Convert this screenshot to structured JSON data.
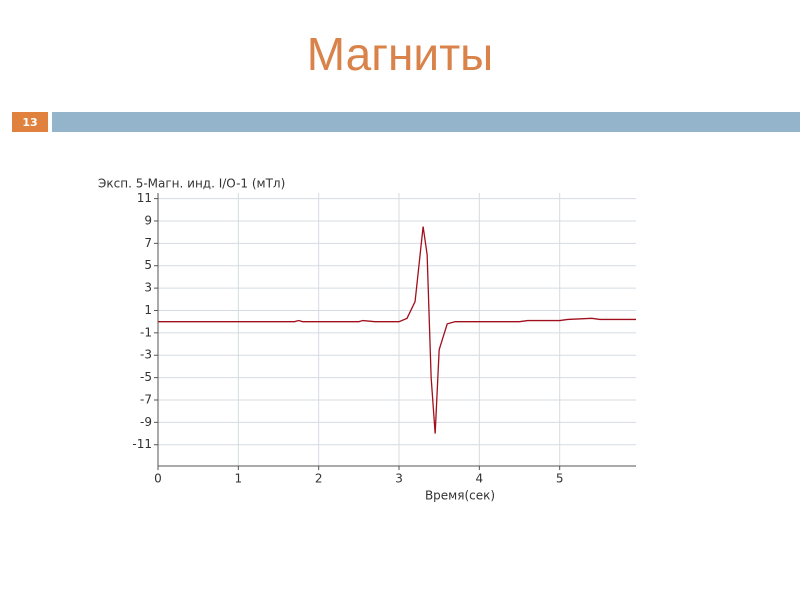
{
  "slide": {
    "title": "Магниты",
    "number": "13"
  },
  "chart_data": {
    "type": "line",
    "y_label": "Эксп. 5-Магн. инд. I/O-1 (мТл)",
    "x_label": "Время(сек)",
    "x": [
      0,
      1.7,
      1.75,
      1.8,
      2.5,
      2.55,
      2.7,
      3.0,
      3.1,
      3.2,
      3.3,
      3.35,
      3.4,
      3.45,
      3.5,
      3.6,
      3.7,
      4.5,
      4.6,
      5.0,
      5.1,
      5.4,
      5.5,
      5.95
    ],
    "values": [
      0,
      0,
      0.1,
      0,
      0,
      0.1,
      0,
      0,
      0.3,
      1.8,
      8.5,
      6,
      -5,
      -10,
      -2.5,
      -0.2,
      0,
      0,
      0.1,
      0.1,
      0.2,
      0.3,
      0.2,
      0.2
    ],
    "color": "#a0101c",
    "xlim": [
      0,
      5.95
    ],
    "ylim": [
      -12.9,
      11.5
    ],
    "xticks": [
      0,
      1,
      2,
      3,
      4,
      5
    ],
    "yticks": [
      11,
      9,
      7,
      5,
      3,
      1,
      -1,
      -3,
      -5,
      -7,
      -9,
      -11
    ],
    "grid": true
  }
}
